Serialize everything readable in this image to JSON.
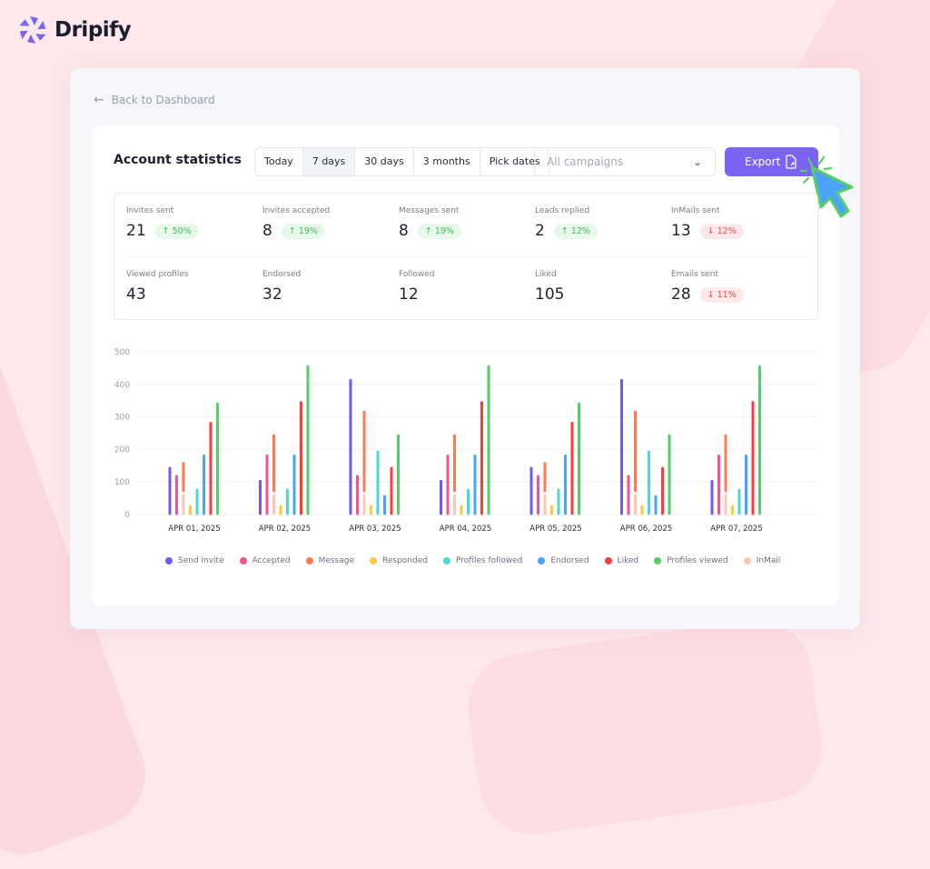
{
  "brand": {
    "name": "Dripify",
    "color": "#7a63f5"
  },
  "nav": {
    "back_label": "Back to Dashboard"
  },
  "header": {
    "title": "Account statistics",
    "ranges": [
      {
        "label": "Today",
        "active": false
      },
      {
        "label": "7 days",
        "active": true
      },
      {
        "label": "30 days",
        "active": false
      },
      {
        "label": "3 months",
        "active": false
      },
      {
        "label": "Pick dates",
        "active": false
      }
    ],
    "campaign_select": {
      "value": "All campaigns"
    },
    "export_label": "Export"
  },
  "stats": [
    {
      "label": "Invites sent",
      "value": "21",
      "change": "50%",
      "direction": "up"
    },
    {
      "label": "Invites accepted",
      "value": "8",
      "change": "19%",
      "direction": "up"
    },
    {
      "label": "Messages sent",
      "value": "8",
      "change": "19%",
      "direction": "up"
    },
    {
      "label": "Leads replied",
      "value": "2",
      "change": "12%",
      "direction": "up"
    },
    {
      "label": "InMails sent",
      "value": "13",
      "change": "12%",
      "direction": "down"
    },
    {
      "label": "Viewed profiles",
      "value": "43"
    },
    {
      "label": "Endorsed",
      "value": "32"
    },
    {
      "label": "Followed",
      "value": "12"
    },
    {
      "label": "Liked",
      "value": "105"
    },
    {
      "label": "Emails sent",
      "value": "28",
      "change": "11%",
      "direction": "down"
    }
  ],
  "chart_data": {
    "type": "bar",
    "categories": [
      "APR 01, 2025",
      "APR 02, 2025",
      "APR 03, 2025",
      "APR 04, 2025",
      "APR 05, 2025",
      "APR 06, 2025",
      "APR 07, 2025"
    ],
    "ylim": [
      0,
      500
    ],
    "yticks": [
      "0",
      "100",
      "200",
      "300",
      "400",
      "500"
    ],
    "grid": true,
    "legend_position": "bottom",
    "series": [
      {
        "name": "Send invite",
        "color": "#7259f6",
        "values": [
          145,
          105,
          415,
          105,
          145,
          415,
          105
        ]
      },
      {
        "name": "Accepted",
        "color": "#f7538c",
        "values": [
          120,
          183,
          120,
          183,
          120,
          120,
          183
        ]
      },
      {
        "name": "Message",
        "color": "#ff7a4f",
        "values": [
          160,
          245,
          318,
          245,
          160,
          318,
          245
        ]
      },
      {
        "name": "Responded",
        "color": "#ffc93e",
        "values": [
          28,
          28,
          28,
          28,
          28,
          28,
          28
        ]
      },
      {
        "name": "Profiles followed",
        "color": "#4fd6d6",
        "values": [
          78,
          78,
          195,
          78,
          78,
          195,
          78
        ]
      },
      {
        "name": "Endorsed",
        "color": "#4ca3ff",
        "values": [
          183,
          183,
          58,
          183,
          183,
          58,
          183
        ]
      },
      {
        "name": "Liked",
        "color": "#ff3b3b",
        "values": [
          283,
          347,
          145,
          347,
          283,
          145,
          347
        ]
      },
      {
        "name": "Profiles viewed",
        "color": "#55cf63",
        "values": [
          343,
          457,
          245,
          457,
          343,
          245,
          457
        ]
      },
      {
        "name": "InMail",
        "color": "#ffc4b2",
        "values": [
          60,
          60,
          60,
          60,
          60,
          60,
          60
        ]
      }
    ]
  }
}
